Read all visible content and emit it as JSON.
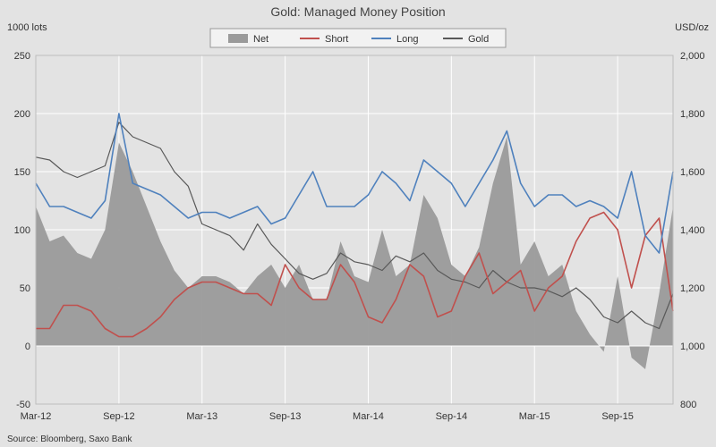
{
  "chart_data": {
    "type": "line",
    "title": "Gold: Managed Money Position",
    "left_unit": "1000 lots",
    "right_unit": "USD/oz",
    "source": "Source: Bloomberg, Saxo Bank",
    "left_ylim": [
      -50,
      250
    ],
    "left_ticks": [
      -50,
      0,
      50,
      100,
      150,
      200,
      250
    ],
    "right_ylim": [
      800,
      2000
    ],
    "right_ticks": [
      "800",
      "1,000",
      "1,200",
      "1,400",
      "1,600",
      "1,800",
      "2,000"
    ],
    "x_tick_labels": [
      "Mar-12",
      "Sep-12",
      "Mar-13",
      "Sep-13",
      "Mar-14",
      "Sep-14",
      "Mar-15",
      "Sep-15"
    ],
    "x_range_months": [
      0,
      46
    ],
    "legend": [
      {
        "name": "Net",
        "kind": "area",
        "color": "#9a9a9a"
      },
      {
        "name": "Short",
        "kind": "line",
        "color": "#c0504d"
      },
      {
        "name": "Long",
        "kind": "line",
        "color": "#4f81bd"
      },
      {
        "name": "Gold",
        "kind": "line",
        "color": "#595959"
      }
    ],
    "x_months": [
      0,
      1,
      2,
      3,
      4,
      5,
      6,
      7,
      8,
      9,
      10,
      11,
      12,
      13,
      14,
      15,
      16,
      17,
      18,
      19,
      20,
      21,
      22,
      23,
      24,
      25,
      26,
      27,
      28,
      29,
      30,
      31,
      32,
      33,
      34,
      35,
      36,
      37,
      38,
      39,
      40,
      41,
      42,
      43,
      44,
      45,
      46
    ],
    "series": [
      {
        "name": "Net",
        "axis": "left",
        "values": [
          120,
          90,
          95,
          80,
          75,
          100,
          175,
          150,
          120,
          90,
          65,
          50,
          60,
          60,
          55,
          45,
          60,
          70,
          50,
          70,
          40,
          40,
          90,
          60,
          55,
          100,
          60,
          70,
          130,
          110,
          70,
          60,
          85,
          140,
          180,
          70,
          90,
          60,
          70,
          30,
          10,
          -5,
          60,
          -10,
          -20,
          45,
          120
        ]
      },
      {
        "name": "Short",
        "axis": "left",
        "values": [
          15,
          15,
          35,
          35,
          30,
          15,
          8,
          8,
          15,
          25,
          40,
          50,
          55,
          55,
          50,
          45,
          45,
          35,
          70,
          50,
          40,
          40,
          70,
          55,
          25,
          20,
          40,
          70,
          60,
          25,
          30,
          60,
          80,
          45,
          55,
          65,
          30,
          50,
          60,
          90,
          110,
          115,
          100,
          50,
          95,
          110,
          30
        ]
      },
      {
        "name": "Long",
        "axis": "left",
        "values": [
          140,
          120,
          120,
          115,
          110,
          125,
          200,
          140,
          135,
          130,
          120,
          110,
          115,
          115,
          110,
          115,
          120,
          105,
          110,
          130,
          150,
          120,
          120,
          120,
          130,
          150,
          140,
          125,
          160,
          150,
          140,
          120,
          140,
          160,
          185,
          140,
          120,
          130,
          130,
          120,
          125,
          120,
          110,
          150,
          95,
          80,
          150
        ]
      },
      {
        "name": "Gold",
        "axis": "right",
        "values": [
          1650,
          1640,
          1600,
          1580,
          1600,
          1620,
          1770,
          1720,
          1700,
          1680,
          1600,
          1550,
          1420,
          1400,
          1380,
          1330,
          1420,
          1350,
          1300,
          1250,
          1230,
          1250,
          1320,
          1290,
          1280,
          1260,
          1310,
          1290,
          1320,
          1260,
          1230,
          1220,
          1200,
          1260,
          1220,
          1200,
          1200,
          1190,
          1170,
          1200,
          1160,
          1100,
          1080,
          1120,
          1080,
          1060,
          1180
        ]
      }
    ]
  }
}
